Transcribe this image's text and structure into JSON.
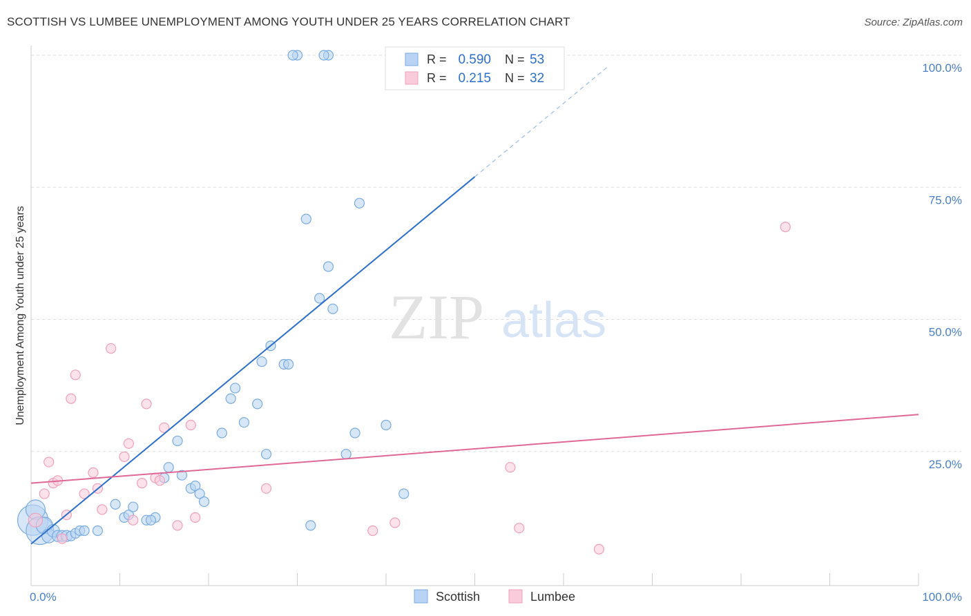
{
  "chart_data": {
    "type": "scatter",
    "title": "SCOTTISH VS LUMBEE UNEMPLOYMENT AMONG YOUTH UNDER 25 YEARS CORRELATION CHART",
    "source": "Source: ZipAtlas.com",
    "xlabel": "",
    "ylabel": "Unemployment Among Youth under 25 years",
    "xlim": [
      0,
      100
    ],
    "ylim": [
      0,
      100
    ],
    "x_tick_labels": [
      "0.0%",
      "100.0%"
    ],
    "y_tick_labels": [
      "25.0%",
      "50.0%",
      "75.0%",
      "100.0%"
    ],
    "y_gridlines": [
      25,
      50,
      75,
      100
    ],
    "grid": true,
    "legend_position": "top-center",
    "watermark": "ZIPatlas",
    "series": [
      {
        "name": "Scottish",
        "color": "#7aabe0",
        "fill": "#b8d3f3",
        "trend_color": "#2d6fcc",
        "R": "0.590",
        "N": "53",
        "trend": {
          "x0": 0,
          "y0": 7.5,
          "x1": 50,
          "y1": 77.0,
          "dashed_to_x": 65
        },
        "points": [
          [
            0.2,
            12,
            22
          ],
          [
            0.5,
            14,
            14
          ],
          [
            1.0,
            10,
            20
          ],
          [
            1.5,
            11,
            12
          ],
          [
            2.0,
            9,
            10
          ],
          [
            2.5,
            10,
            9
          ],
          [
            3.0,
            9,
            8
          ],
          [
            3.5,
            9,
            8
          ],
          [
            4.0,
            9,
            8
          ],
          [
            4.5,
            9,
            7
          ],
          [
            5.0,
            9.5,
            7
          ],
          [
            5.5,
            10,
            7
          ],
          [
            6.0,
            10,
            7
          ],
          [
            7.5,
            10,
            7
          ],
          [
            9.5,
            15,
            7
          ],
          [
            10.5,
            12.5,
            7
          ],
          [
            11.0,
            13,
            7
          ],
          [
            11.5,
            14.5,
            7
          ],
          [
            13.0,
            12,
            7
          ],
          [
            14.0,
            12.5,
            7
          ],
          [
            15.0,
            20,
            7
          ],
          [
            15.5,
            22,
            7
          ],
          [
            16.5,
            27,
            7
          ],
          [
            17.0,
            20.5,
            7
          ],
          [
            18.0,
            18,
            7
          ],
          [
            18.5,
            18.5,
            7
          ],
          [
            19.0,
            17,
            7
          ],
          [
            19.5,
            15.5,
            7
          ],
          [
            21.5,
            28.5,
            7
          ],
          [
            22.5,
            35,
            7
          ],
          [
            23.0,
            37,
            7
          ],
          [
            24.0,
            30.5,
            7
          ],
          [
            25.5,
            34,
            7
          ],
          [
            26.0,
            42,
            7
          ],
          [
            27.0,
            45,
            7
          ],
          [
            28.5,
            41.5,
            7
          ],
          [
            29.0,
            41.5,
            7
          ],
          [
            30.0,
            100,
            7
          ],
          [
            29.5,
            100,
            7
          ],
          [
            33.5,
            100,
            7
          ],
          [
            33.0,
            100,
            7
          ],
          [
            31.5,
            11,
            7
          ],
          [
            31.0,
            69,
            7
          ],
          [
            32.5,
            54,
            7
          ],
          [
            33.5,
            60,
            7
          ],
          [
            34.0,
            52,
            7
          ],
          [
            35.5,
            24.5,
            7
          ],
          [
            37.0,
            72,
            7
          ],
          [
            26.5,
            24.5,
            7
          ],
          [
            13.5,
            12,
            7
          ],
          [
            36.5,
            28.5,
            7
          ],
          [
            40.0,
            30,
            7
          ],
          [
            42.0,
            17,
            7
          ]
        ]
      },
      {
        "name": "Lumbee",
        "color": "#f0a0ba",
        "fill": "#f9cbdb",
        "trend_color": "#e06897",
        "R": "0.215",
        "N": "32",
        "trend": {
          "x0": 0,
          "y0": 19.0,
          "x1": 100,
          "y1": 32.0
        },
        "points": [
          [
            0.5,
            12,
            10
          ],
          [
            1.5,
            17,
            7
          ],
          [
            2.0,
            23,
            7
          ],
          [
            2.5,
            19,
            7
          ],
          [
            3.0,
            19.5,
            7
          ],
          [
            3.5,
            8.5,
            7
          ],
          [
            4.0,
            13,
            7
          ],
          [
            4.5,
            35,
            7
          ],
          [
            5.0,
            39.5,
            7
          ],
          [
            6.0,
            17,
            7
          ],
          [
            7.0,
            21,
            7
          ],
          [
            7.5,
            18,
            7
          ],
          [
            8.0,
            14,
            7
          ],
          [
            9.0,
            44.5,
            7
          ],
          [
            10.5,
            24,
            7
          ],
          [
            11.0,
            26.5,
            7
          ],
          [
            11.5,
            12,
            7
          ],
          [
            12.5,
            19,
            7
          ],
          [
            13.0,
            34,
            7
          ],
          [
            14.0,
            20,
            7
          ],
          [
            14.5,
            19.5,
            7
          ],
          [
            15.0,
            29.5,
            7
          ],
          [
            16.5,
            11,
            7
          ],
          [
            18.5,
            12.5,
            7
          ],
          [
            26.5,
            18,
            7
          ],
          [
            38.5,
            10,
            7
          ],
          [
            41.0,
            11.5,
            7
          ],
          [
            54.0,
            22,
            7
          ],
          [
            55.0,
            10.5,
            7
          ],
          [
            64.0,
            6.5,
            7
          ],
          [
            85.0,
            67.5,
            7
          ],
          [
            18.0,
            30,
            7
          ]
        ]
      }
    ]
  }
}
